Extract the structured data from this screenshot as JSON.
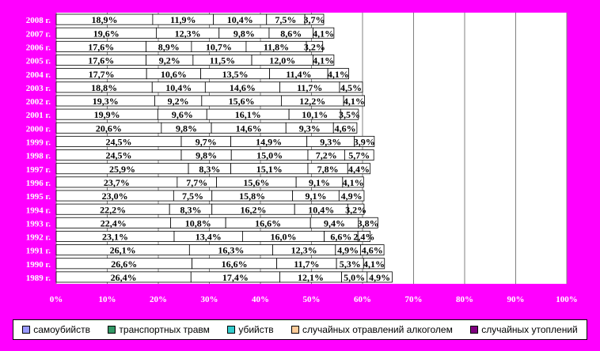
{
  "chart_data": {
    "type": "bar",
    "orientation": "horizontal",
    "stacked": "percent",
    "categories": [
      "2008 г.",
      "2007 г.",
      "2006 г.",
      "2005 г.",
      "2004 г.",
      "2003 г.",
      "2002 г.",
      "2001 г.",
      "2000 г.",
      "1999 г.",
      "1998 г.",
      "1997 г.",
      "1996 г.",
      "1995 г.",
      "1994 г.",
      "1993 г.",
      "1992 г.",
      "1991 г.",
      "1990 г.",
      "1989 г."
    ],
    "series": [
      {
        "name": "самоубийств",
        "color": "#9999FF",
        "values": [
          18.9,
          19.6,
          17.6,
          17.6,
          17.7,
          18.8,
          19.3,
          19.9,
          20.6,
          24.5,
          24.5,
          25.9,
          23.7,
          23.0,
          22.2,
          22.4,
          23.1,
          26.1,
          26.6,
          26.4
        ],
        "labels": [
          "18,9%",
          "19,6%",
          "17,6%",
          "17,6%",
          "17,7%",
          "18,8%",
          "19,3%",
          "19,9%",
          "20,6%",
          "24,5%",
          "24,5%",
          "25,9%",
          "23,7%",
          "23,0%",
          "22,2%",
          "22,4%",
          "23,1%",
          "26,1%",
          "26,6%",
          "26,4%"
        ]
      },
      {
        "name": "транспортных травм",
        "color": "#339966",
        "values": [
          11.9,
          12.3,
          8.9,
          9.2,
          10.6,
          10.4,
          9.2,
          9.6,
          9.8,
          9.7,
          9.8,
          8.3,
          7.7,
          7.5,
          8.3,
          10.8,
          13.4,
          16.3,
          16.6,
          17.4
        ],
        "labels": [
          "11,9%",
          "12,3%",
          "8,9%",
          "9,2%",
          "10,6%",
          "10,4%",
          "9,2%",
          "9,6%",
          "9,8%",
          "9,7%",
          "9,8%",
          "8,3%",
          "7,7%",
          "7,5%",
          "8,3%",
          "10,8%",
          "13,4%",
          "16,3%",
          "16,6%",
          "17,4%"
        ]
      },
      {
        "name": "убийств",
        "color": "#33CCCC",
        "values": [
          10.4,
          9.8,
          10.7,
          11.5,
          13.5,
          14.6,
          15.6,
          16.1,
          14.6,
          14.9,
          15.0,
          15.1,
          15.6,
          15.8,
          16.2,
          16.6,
          16.0,
          12.3,
          11.7,
          12.1
        ],
        "labels": [
          "10,4%",
          "9,8%",
          "10,7%",
          "11,5%",
          "13,5%",
          "14,6%",
          "15,6%",
          "16,1%",
          "14,6%",
          "14,9%",
          "15,0%",
          "15,1%",
          "15,6%",
          "15,8%",
          "16,2%",
          "16,6%",
          "16,0%",
          "12,3%",
          "11,7%",
          "12,1%"
        ]
      },
      {
        "name": "случайных отравлений алкоголем",
        "color": "#FFCC99",
        "values": [
          7.5,
          8.6,
          11.8,
          12.0,
          11.4,
          11.7,
          12.2,
          10.1,
          9.3,
          9.3,
          7.2,
          7.8,
          9.1,
          9.1,
          10.4,
          9.4,
          6.6,
          4.9,
          5.3,
          5.0
        ],
        "labels": [
          "7,5%",
          "8,6%",
          "11,8%",
          "12,0%",
          "11,4%",
          "11,7%",
          "12,2%",
          "10,1%",
          "9,3%",
          "9,3%",
          "7,2%",
          "7,8%",
          "9,1%",
          "9,1%",
          "10,4%",
          "9,4%",
          "6,6%",
          "4,9%",
          "5,3%",
          "5,0%"
        ]
      },
      {
        "name": "случайных утоплений",
        "color": "#800080",
        "values": [
          3.7,
          4.1,
          3.2,
          4.1,
          4.1,
          4.5,
          4.1,
          3.5,
          4.6,
          3.9,
          5.7,
          4.4,
          4.1,
          4.9,
          3.2,
          3.8,
          2.4,
          4.6,
          4.1,
          4.9
        ],
        "labels": [
          "3,7%",
          "4,1%",
          "3,2%",
          "4,1%",
          "4,1%",
          "4,5%",
          "4,1%",
          "3,5%",
          "4,6%",
          "3,9%",
          "5,7%",
          "4,4%",
          "4,1%",
          "4,9%",
          "3,2%",
          "3,8%",
          "2,4%",
          "4,6%",
          "4,1%",
          "4,9%"
        ]
      }
    ],
    "xticks": [
      "0%",
      "10%",
      "20%",
      "30%",
      "40%",
      "50%",
      "60%",
      "70%",
      "80%",
      "90%",
      "100%"
    ],
    "xlim": [
      0,
      100
    ],
    "grid": true,
    "legend_position": "bottom",
    "title": "",
    "xlabel": "",
    "ylabel": ""
  }
}
